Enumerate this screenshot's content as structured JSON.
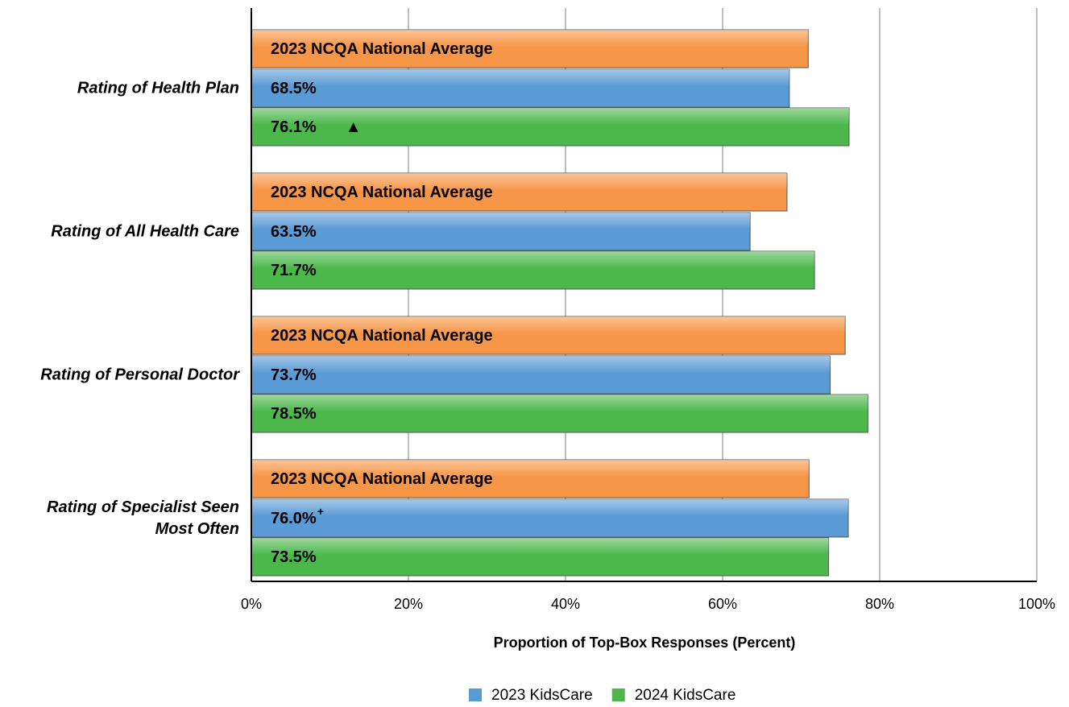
{
  "chart_data": {
    "type": "bar",
    "orientation": "horizontal",
    "categories": [
      "Rating of Health Plan",
      "Rating of All Health Care",
      "Rating of Personal Doctor",
      "Rating of Specialist Seen Most Often"
    ],
    "series": [
      {
        "name": "2023 NCQA National Average",
        "color": "#f79646",
        "values": [
          70.9,
          68.2,
          75.6,
          71.0
        ],
        "in_legend": false
      },
      {
        "name": "2023 KidsCare",
        "color": "#5b9bd5",
        "values": [
          68.5,
          63.5,
          73.7,
          76.0
        ],
        "value_labels": [
          "68.5%",
          "63.5%",
          "73.7%",
          "76.0%"
        ],
        "superscripts": [
          null,
          null,
          null,
          "+"
        ],
        "in_legend": true
      },
      {
        "name": "2024 KidsCare",
        "color": "#4cb84c",
        "values": [
          76.1,
          71.7,
          78.5,
          73.5
        ],
        "value_labels": [
          "76.1%",
          "71.7%",
          "78.5%",
          "73.5%"
        ],
        "markers": [
          "▲",
          null,
          null,
          null
        ],
        "in_legend": true
      }
    ],
    "xlabel": "Proportion of Top-Box Responses (Percent)",
    "xlim": [
      0,
      100
    ],
    "xticks": [
      {
        "value": 0,
        "label": "0%"
      },
      {
        "value": 20,
        "label": "20%"
      },
      {
        "value": 40,
        "label": "40%"
      },
      {
        "value": 60,
        "label": "60%"
      },
      {
        "value": 80,
        "label": "80%"
      },
      {
        "value": 100,
        "label": "100%"
      }
    ],
    "grid": true,
    "legend": "bottom"
  }
}
